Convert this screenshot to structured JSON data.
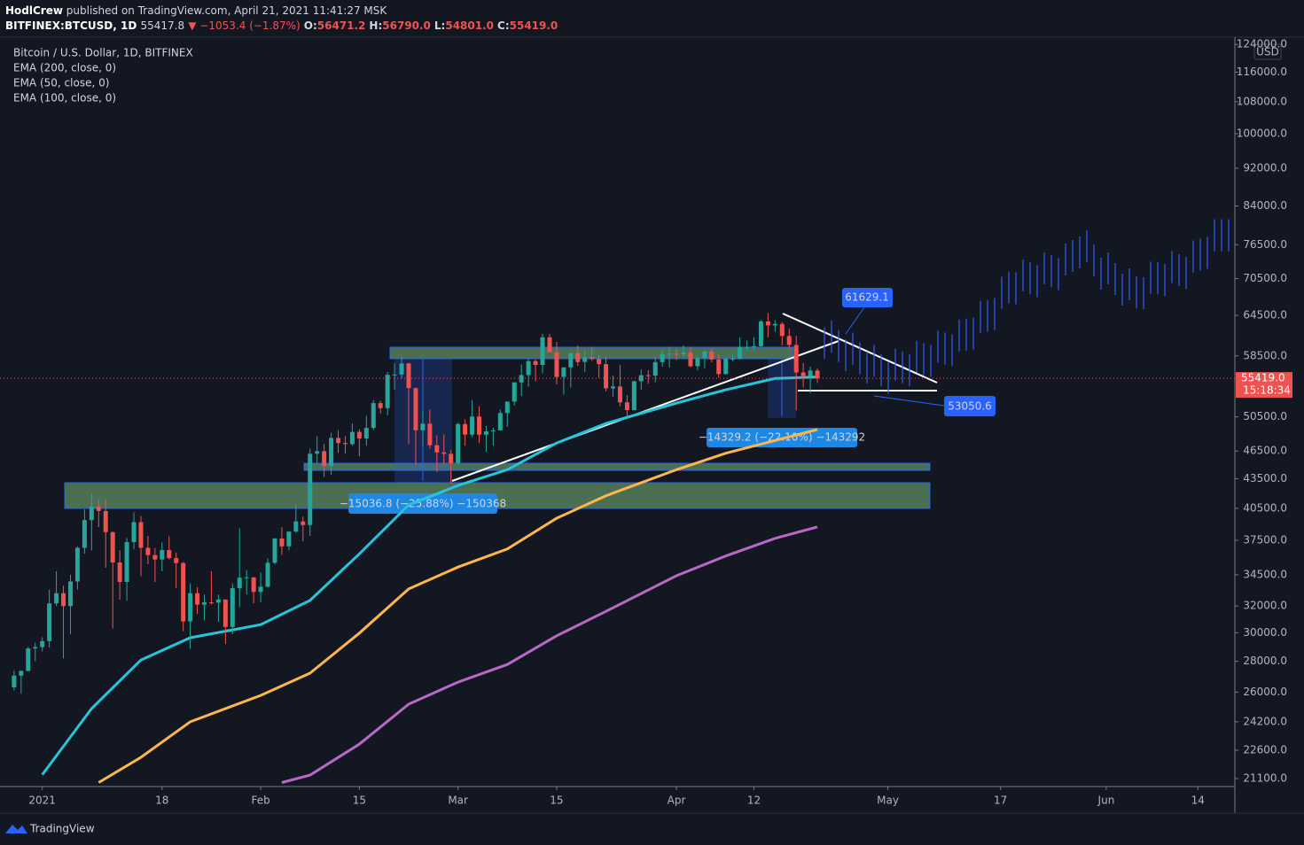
{
  "header": {
    "publisher": "HodlCrew",
    "published": "published on TradingView.com, April 21, 2021 11:41:27 MSK",
    "symbol": "BITFINEX:BTCUSD, 1D",
    "price": "55417.8",
    "change": "▼ −1053.4 (−1.87%)",
    "ohlc": [
      {
        "label": "O:",
        "value": "56471.2"
      },
      {
        "label": "H:",
        "value": "56790.0"
      },
      {
        "label": "L:",
        "value": "54801.0"
      },
      {
        "label": "C:",
        "value": "55419.0"
      }
    ]
  },
  "chart_data": {
    "type": "candlestick",
    "title": "Bitcoin / U.S. Dollar, 1D, BITFINEX",
    "currency": "USD",
    "log_scale": true,
    "up_color": "#26a69a",
    "down_color": "#ef5350",
    "x": [
      "2020-12-28",
      "2020-12-29",
      "2020-12-30",
      "2020-12-31",
      "2021-01-01",
      "2021-01-02",
      "2021-01-03",
      "2021-01-04",
      "2021-01-05",
      "2021-01-06",
      "2021-01-07",
      "2021-01-08",
      "2021-01-09",
      "2021-01-10",
      "2021-01-11",
      "2021-01-12",
      "2021-01-13",
      "2021-01-14",
      "2021-01-15",
      "2021-01-16",
      "2021-01-17",
      "2021-01-18",
      "2021-01-19",
      "2021-01-20",
      "2021-01-21",
      "2021-01-22",
      "2021-01-23",
      "2021-01-24",
      "2021-01-25",
      "2021-01-26",
      "2021-01-27",
      "2021-01-28",
      "2021-01-29",
      "2021-01-30",
      "2021-01-31",
      "2021-02-01",
      "2021-02-02",
      "2021-02-03",
      "2021-02-04",
      "2021-02-05",
      "2021-02-06",
      "2021-02-07",
      "2021-02-08",
      "2021-02-09",
      "2021-02-10",
      "2021-02-11",
      "2021-02-12",
      "2021-02-13",
      "2021-02-14",
      "2021-02-15",
      "2021-02-16",
      "2021-02-17",
      "2021-02-18",
      "2021-02-19",
      "2021-02-20",
      "2021-02-21",
      "2021-02-22",
      "2021-02-23",
      "2021-02-24",
      "2021-02-25",
      "2021-02-26",
      "2021-02-27",
      "2021-02-28",
      "2021-03-01",
      "2021-03-02",
      "2021-03-03",
      "2021-03-04",
      "2021-03-05",
      "2021-03-06",
      "2021-03-07",
      "2021-03-08",
      "2021-03-09",
      "2021-03-10",
      "2021-03-11",
      "2021-03-12",
      "2021-03-13",
      "2021-03-14",
      "2021-03-15",
      "2021-03-16",
      "2021-03-17",
      "2021-03-18",
      "2021-03-19",
      "2021-03-20",
      "2021-03-21",
      "2021-03-22",
      "2021-03-23",
      "2021-03-24",
      "2021-03-25",
      "2021-03-26",
      "2021-03-27",
      "2021-03-28",
      "2021-03-29",
      "2021-03-30",
      "2021-03-31",
      "2021-04-01",
      "2021-04-02",
      "2021-04-03",
      "2021-04-04",
      "2021-04-05",
      "2021-04-06",
      "2021-04-07",
      "2021-04-08",
      "2021-04-09",
      "2021-04-10",
      "2021-04-11",
      "2021-04-12",
      "2021-04-13",
      "2021-04-14",
      "2021-04-15",
      "2021-04-16",
      "2021-04-17",
      "2021-04-18",
      "2021-04-19",
      "2021-04-20",
      "2021-04-21"
    ],
    "open": [
      26300,
      27050,
      27360,
      28880,
      28980,
      29400,
      32200,
      33000,
      31990,
      33950,
      36820,
      39370,
      40670,
      40240,
      38240,
      35540,
      33910,
      37330,
      39170,
      36820,
      36180,
      35800,
      36620,
      35920,
      35490,
      30830,
      33000,
      32100,
      32280,
      32260,
      32500,
      30420,
      33400,
      34260,
      34290,
      33100,
      33520,
      35510,
      37660,
      36950,
      38290,
      39240,
      38900,
      46200,
      46480,
      44840,
      48000,
      47410,
      47290,
      48700,
      47940,
      49170,
      52200,
      51570,
      55890,
      55930,
      57450,
      54120,
      48890,
      49680,
      47160,
      46340,
      46190,
      45140,
      49630,
      48380,
      50540,
      48370,
      48760,
      48880,
      50970,
      52390,
      54880,
      55860,
      57770,
      57240,
      61190,
      59010,
      55600,
      56900,
      58910,
      57650,
      58330,
      58080,
      57350,
      54090,
      54340,
      52300,
      51320,
      55030,
      55840,
      55780,
      57630,
      58760,
      58800,
      58750,
      58970,
      57060,
      58200,
      59110,
      57990,
      56000,
      58090,
      58100,
      59770,
      59780,
      59890,
      63580,
      62960,
      63190,
      61380,
      60060,
      56210,
      55710,
      56471.2
    ],
    "high": [
      27400,
      27400,
      28990,
      29300,
      29680,
      33300,
      34800,
      33600,
      34500,
      36950,
      40400,
      41950,
      41400,
      41400,
      38300,
      36600,
      37700,
      40100,
      39750,
      37900,
      36800,
      37300,
      37850,
      36400,
      35600,
      33800,
      33500,
      32900,
      34800,
      32900,
      32500,
      33800,
      38600,
      34900,
      34300,
      34700,
      35900,
      37700,
      38700,
      38300,
      40900,
      39700,
      46800,
      48200,
      47300,
      48600,
      48900,
      48200,
      49700,
      49000,
      50600,
      52600,
      52500,
      56300,
      57500,
      58300,
      57500,
      54200,
      51300,
      51400,
      48300,
      48400,
      46600,
      49800,
      50200,
      52600,
      51800,
      49400,
      49200,
      51400,
      52400,
      54900,
      57300,
      58100,
      58000,
      61700,
      61700,
      60500,
      56900,
      58900,
      60000,
      59400,
      59800,
      58600,
      58400,
      55800,
      57200,
      53200,
      55100,
      56600,
      56500,
      58400,
      59300,
      59800,
      59500,
      60000,
      59800,
      58500,
      59300,
      59500,
      58700,
      58200,
      58900,
      61200,
      60700,
      61200,
      63800,
      64900,
      63800,
      63500,
      62500,
      61400,
      57500,
      57000,
      56790
    ],
    "low": [
      26100,
      25900,
      27320,
      28010,
      28680,
      28950,
      32000,
      28200,
      29900,
      33300,
      36300,
      36600,
      38700,
      35100,
      30300,
      32500,
      32400,
      36700,
      34400,
      35400,
      33900,
      34800,
      35800,
      33400,
      30100,
      28850,
      31400,
      30900,
      32100,
      30800,
      29200,
      29900,
      31900,
      32900,
      32200,
      32300,
      33450,
      35400,
      36200,
      36600,
      38200,
      37400,
      37900,
      45100,
      43700,
      43900,
      46300,
      46200,
      47100,
      45900,
      47100,
      48900,
      50900,
      50700,
      53900,
      55400,
      47300,
      45000,
      47000,
      46800,
      44200,
      45100,
      43000,
      45000,
      47100,
      48100,
      47400,
      46400,
      47100,
      48900,
      49300,
      51900,
      53100,
      54300,
      55000,
      56100,
      59000,
      54600,
      53300,
      54200,
      57100,
      56300,
      57800,
      55500,
      53700,
      53000,
      51800,
      50400,
      51300,
      53900,
      54700,
      54900,
      57000,
      56900,
      57900,
      58400,
      56900,
      56500,
      56800,
      57600,
      55500,
      55900,
      57700,
      58000,
      59200,
      59400,
      59800,
      61200,
      62000,
      60000,
      59600,
      51300,
      54200,
      53500,
      54801
    ],
    "close": [
      27050,
      27360,
      28880,
      28980,
      29400,
      32200,
      33000,
      31990,
      33950,
      36820,
      39370,
      40670,
      40240,
      38240,
      35540,
      33910,
      37330,
      39170,
      36820,
      36180,
      35800,
      36620,
      35920,
      35490,
      30830,
      33000,
      32100,
      32280,
      32260,
      32500,
      30420,
      33400,
      34260,
      34290,
      33100,
      33520,
      35510,
      37660,
      36950,
      38290,
      39240,
      38900,
      46200,
      46480,
      44840,
      48000,
      47410,
      47290,
      48700,
      47940,
      49170,
      52200,
      51570,
      55890,
      55930,
      57450,
      54120,
      48890,
      49680,
      47160,
      46340,
      46190,
      45140,
      49630,
      48380,
      50540,
      48370,
      48760,
      48880,
      50970,
      52390,
      54880,
      55860,
      57770,
      57240,
      61190,
      59010,
      55600,
      56900,
      58910,
      57650,
      58330,
      58080,
      57350,
      54090,
      54340,
      52300,
      51320,
      55030,
      55840,
      55780,
      57630,
      58760,
      58800,
      58750,
      58970,
      57060,
      58200,
      59110,
      57990,
      56000,
      58090,
      58100,
      59770,
      59780,
      59890,
      63580,
      62960,
      63190,
      61380,
      60060,
      56210,
      55710,
      56470,
      55419
    ],
    "series": [
      {
        "name": "EMA (200, close, 0)",
        "color": "#ba68c8",
        "x": [
          "2021-02-04",
          "2021-02-08",
          "2021-02-15",
          "2021-02-22",
          "2021-03-01",
          "2021-03-08",
          "2021-03-15",
          "2021-03-22",
          "2021-04-01",
          "2021-04-08",
          "2021-04-15",
          "2021-04-21"
        ],
        "values": [
          20900,
          21280,
          22930,
          25250,
          26630,
          27790,
          29780,
          31590,
          34420,
          36100,
          37670,
          38720
        ]
      },
      {
        "name": "EMA (50, close, 0)",
        "color": "#26c6da",
        "x": [
          "2021-01-01",
          "2021-01-08",
          "2021-01-15",
          "2021-01-22",
          "2021-02-01",
          "2021-02-08",
          "2021-02-15",
          "2021-02-22",
          "2021-03-01",
          "2021-03-08",
          "2021-03-15",
          "2021-03-22",
          "2021-04-01",
          "2021-04-08",
          "2021-04-15",
          "2021-04-21"
        ],
        "values": [
          21300,
          24980,
          28090,
          29640,
          30590,
          32430,
          36290,
          40830,
          42800,
          44450,
          47410,
          49700,
          52200,
          53900,
          55400,
          55600
        ]
      },
      {
        "name": "EMA (100, close, 0)",
        "color": "#ffb74d",
        "x": [
          "2021-01-09",
          "2021-01-15",
          "2021-01-22",
          "2021-02-01",
          "2021-02-08",
          "2021-02-15",
          "2021-02-22",
          "2021-03-01",
          "2021-03-08",
          "2021-03-15",
          "2021-03-22",
          "2021-04-01",
          "2021-04-08",
          "2021-04-15",
          "2021-04-21"
        ],
        "values": [
          20900,
          22210,
          24200,
          25790,
          27210,
          29970,
          33340,
          35150,
          36720,
          39540,
          41750,
          44450,
          46260,
          47700,
          48970
        ]
      }
    ],
    "xlim": [
      "2020-12-26",
      "2021-06-19"
    ],
    "xticks": [
      {
        "value": "2021-01-01",
        "label": "2021"
      },
      {
        "value": "2021-01-18",
        "label": "18"
      },
      {
        "value": "2021-02-01",
        "label": "Feb"
      },
      {
        "value": "2021-02-15",
        "label": "15"
      },
      {
        "value": "2021-03-01",
        "label": "Mar"
      },
      {
        "value": "2021-03-15",
        "label": "15"
      },
      {
        "value": "2021-04-01",
        "label": "Apr"
      },
      {
        "value": "2021-04-12",
        "label": "12"
      },
      {
        "value": "2021-05-01",
        "label": "May"
      },
      {
        "value": "2021-05-17",
        "label": "17"
      },
      {
        "value": "2021-06-01",
        "label": "Jun"
      },
      {
        "value": "2021-06-14",
        "label": "14"
      }
    ],
    "ylim": [
      20700,
      126200
    ],
    "yticks": [
      {
        "value": 124000,
        "label": "124000.0"
      },
      {
        "value": 116000,
        "label": "116000.0"
      },
      {
        "value": 108000,
        "label": "108000.0"
      },
      {
        "value": 100000,
        "label": "100000.0"
      },
      {
        "value": 92000,
        "label": "92000.0"
      },
      {
        "value": 84000,
        "label": "84000.0"
      },
      {
        "value": 76500,
        "label": "76500.0"
      },
      {
        "value": 70500,
        "label": "70500.0"
      },
      {
        "value": 64500,
        "label": "64500.0"
      },
      {
        "value": 58500,
        "label": "58500.0"
      },
      {
        "value": 50500,
        "label": "50500.0"
      },
      {
        "value": 46500,
        "label": "46500.0"
      },
      {
        "value": 43500,
        "label": "43500.0"
      },
      {
        "value": 40500,
        "label": "40500.0"
      },
      {
        "value": 37500,
        "label": "37500.0"
      },
      {
        "value": 34500,
        "label": "34500.0"
      },
      {
        "value": 32000,
        "label": "32000.0"
      },
      {
        "value": 30000,
        "label": "30000.0"
      },
      {
        "value": 28000,
        "label": "28000.0"
      },
      {
        "value": 26000,
        "label": "26000.0"
      },
      {
        "value": 24200,
        "label": "24200.0"
      },
      {
        "value": 22600,
        "label": "22600.0"
      },
      {
        "value": 21100,
        "label": "21100.0"
      }
    ],
    "last_price": {
      "value": 55419,
      "label": "55419.0",
      "color": "#ef5350"
    },
    "countdown": "15:18:34",
    "annotations": [
      "61629.1",
      "53050.6",
      "−14329.2 (−22.10%) −143292",
      "−15036.8 (−25.88%) −150368"
    ]
  },
  "footer": {
    "brand": "TradingView"
  }
}
